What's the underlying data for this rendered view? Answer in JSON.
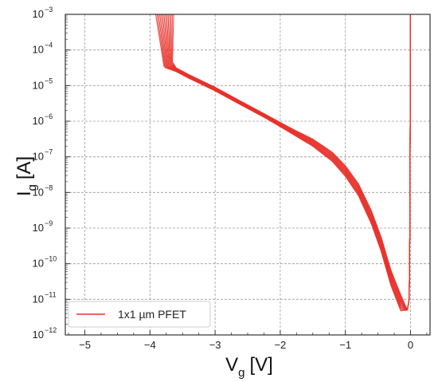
{
  "chart_data": {
    "type": "line",
    "title": "",
    "xlabel": "V",
    "xlabel_sub": "g",
    "xlabel_unit": "[V]",
    "ylabel": "I",
    "ylabel_sub": "g",
    "ylabel_unit": "[A]",
    "xlim": [
      -5.3,
      0.3
    ],
    "ylim": [
      1e-12,
      0.001
    ],
    "yscale": "log",
    "grid": true,
    "legend_position": "lower-left",
    "x_ticks": [
      {
        "value": -5,
        "label": "−5"
      },
      {
        "value": -4,
        "label": "−4"
      },
      {
        "value": -3,
        "label": "−3"
      },
      {
        "value": -2,
        "label": "−2"
      },
      {
        "value": -1,
        "label": "−1"
      },
      {
        "value": 0,
        "label": "0"
      }
    ],
    "y_ticks": [
      {
        "value": 1e-12,
        "base": "10",
        "exp": "−12"
      },
      {
        "value": 1e-11,
        "base": "10",
        "exp": "−11"
      },
      {
        "value": 1e-10,
        "base": "10",
        "exp": "−10"
      },
      {
        "value": 1e-09,
        "base": "10",
        "exp": "−9"
      },
      {
        "value": 1e-08,
        "base": "10",
        "exp": "−8"
      },
      {
        "value": 1e-07,
        "base": "10",
        "exp": "−7"
      },
      {
        "value": 1e-06,
        "base": "10",
        "exp": "−6"
      },
      {
        "value": 1e-05,
        "base": "10",
        "exp": "−5"
      },
      {
        "value": 0.0001,
        "base": "10",
        "exp": "−4"
      },
      {
        "value": 0.001,
        "base": "10",
        "exp": "−3"
      }
    ],
    "series": [
      {
        "name": "1x1 µm PFET",
        "color": "#e8312a",
        "curve_count": 14,
        "x": [
          -3.72,
          -3.7,
          -3.6,
          -3.4,
          -3.2,
          -3.0,
          -2.6,
          -2.2,
          -1.8,
          -1.5,
          -1.2,
          -1.0,
          -0.8,
          -0.6,
          -0.45,
          -0.3,
          -0.15,
          -0.05,
          -0.02,
          -0.01,
          -0.005,
          0.0
        ],
        "y": [
          4e-05,
          3.6e-05,
          2.8e-05,
          1.8e-05,
          1.2e-05,
          8e-06,
          3.2e-06,
          1.3e-06,
          5e-07,
          2.5e-07,
          1e-07,
          4e-08,
          1.2e-08,
          2e-09,
          3.5e-10,
          4e-11,
          8e-12,
          5e-12,
          1e-11,
          1e-09,
          1e-06,
          0.001
        ]
      }
    ]
  }
}
